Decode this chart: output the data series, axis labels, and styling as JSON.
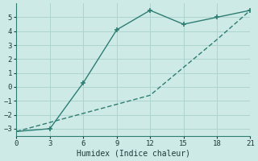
{
  "xlabel": "Humidex (Indice chaleur)",
  "line1_x": [
    0,
    3,
    6,
    9,
    12,
    15,
    18,
    21
  ],
  "line1_y": [
    -3.2,
    -3.0,
    0.3,
    4.1,
    5.5,
    4.5,
    5.0,
    5.5
  ],
  "line2_x": [
    0,
    3,
    6,
    9,
    12,
    15,
    18,
    21
  ],
  "line2_y": [
    -3.2,
    -2.55,
    -1.9,
    -1.25,
    -0.6,
    1.4,
    3.4,
    5.5
  ],
  "line_color": "#2d7d73",
  "bg_color": "#ceeae6",
  "grid_color": "#aed4cf",
  "xlim": [
    0,
    21
  ],
  "ylim": [
    -3.5,
    6.0
  ],
  "xticks": [
    0,
    3,
    6,
    9,
    12,
    15,
    18,
    21
  ],
  "yticks": [
    -3,
    -2,
    -1,
    0,
    1,
    2,
    3,
    4,
    5
  ]
}
